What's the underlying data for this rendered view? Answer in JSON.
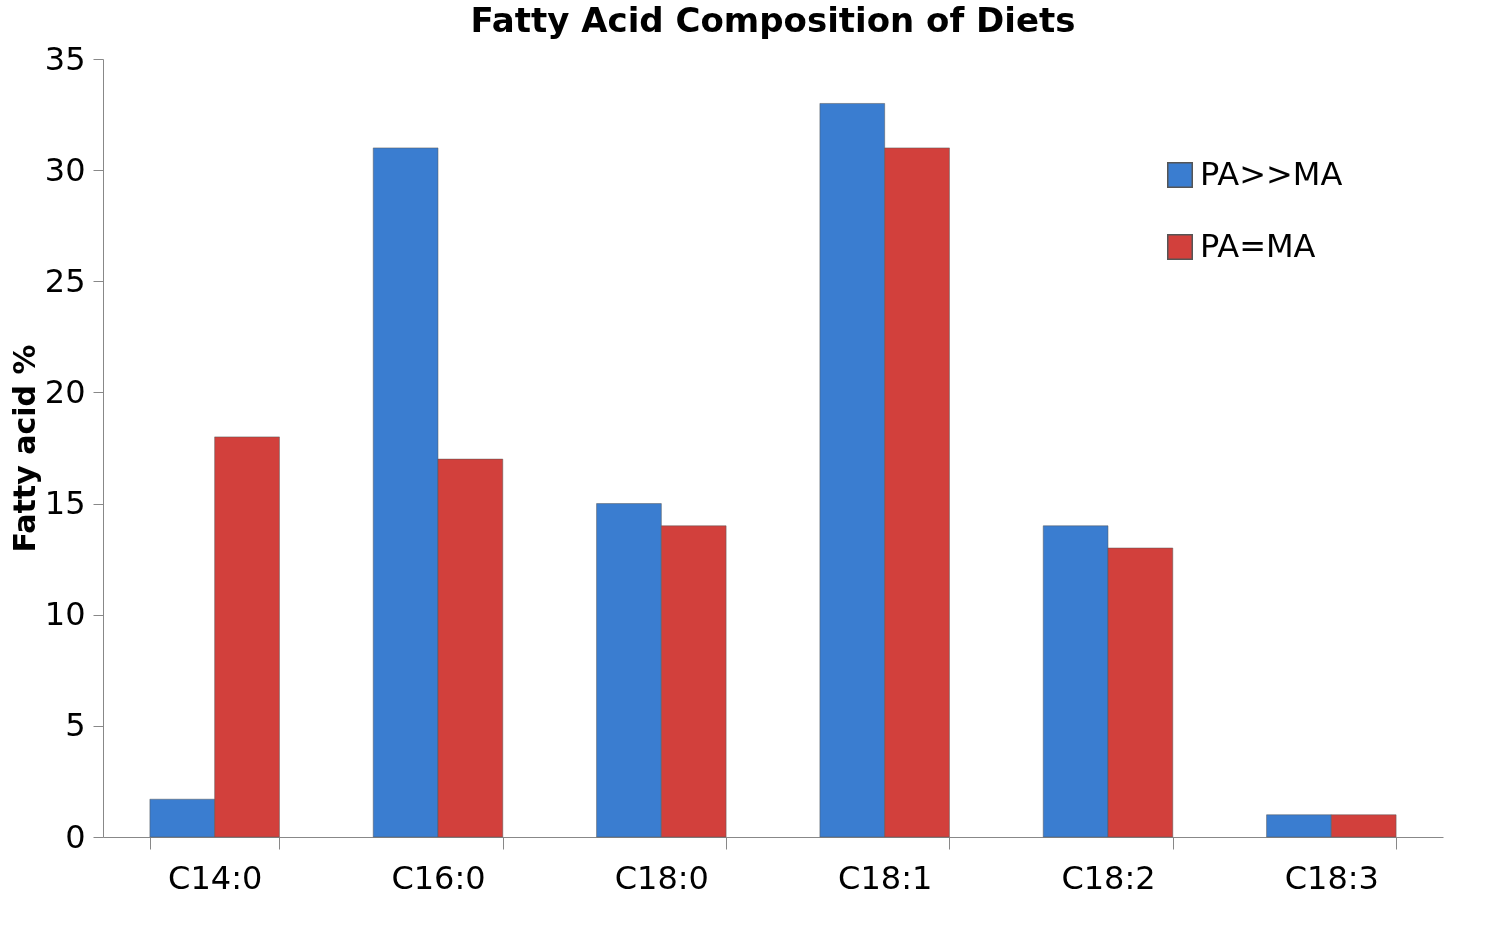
{
  "chart_data": {
    "type": "bar",
    "title": "Fatty Acid Composition of Diets",
    "ylabel": "Fatty acid  %",
    "categories": [
      "C14:0",
      "C16:0",
      "C18:0",
      "C18:1",
      "C18:2",
      "C18:3"
    ],
    "series": [
      {
        "name": "PA>>MA",
        "color": "#3a7dd0",
        "values": [
          1.7,
          31,
          15,
          33,
          14,
          1
        ]
      },
      {
        "name": "PA=MA",
        "color": "#d2403c",
        "values": [
          18,
          17,
          14,
          31,
          13,
          1
        ]
      }
    ],
    "ylim": [
      0,
      35
    ],
    "yticks": [
      0,
      5,
      10,
      15,
      20,
      25,
      30,
      35
    ],
    "grid": false,
    "legend": "top right"
  }
}
